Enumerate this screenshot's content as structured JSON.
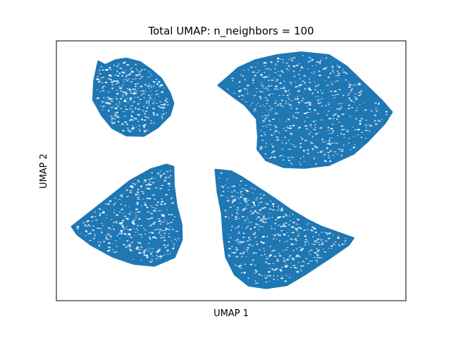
{
  "chart_data": {
    "type": "scatter",
    "title": "Total UMAP: n_neighbors = 100",
    "xlabel": "UMAP 1",
    "ylabel": "UMAP 2",
    "xticks_visible": false,
    "yticks_visible": false,
    "grid": false,
    "legend": "none",
    "xlim": [
      0,
      100
    ],
    "ylim": [
      0,
      100
    ],
    "marker_color": "#1f77b4",
    "clusters": [
      {
        "id": "top-left",
        "polygon": [
          [
            12,
            92.1
          ],
          [
            14,
            90.7
          ],
          [
            17,
            92.6
          ],
          [
            20,
            93.2
          ],
          [
            24,
            91.8
          ],
          [
            27,
            89
          ],
          [
            30,
            85.5
          ],
          [
            32.5,
            79.9
          ],
          [
            33.5,
            76
          ],
          [
            32.5,
            71.4
          ],
          [
            29,
            66.7
          ],
          [
            25,
            63.4
          ],
          [
            20,
            63.6
          ],
          [
            16,
            66.4
          ],
          [
            13,
            71.3
          ],
          [
            10.5,
            77.3
          ],
          [
            10.8,
            84.8
          ]
        ],
        "n_points": 3000
      },
      {
        "id": "top-right",
        "polygon": [
          [
            46.3,
            82.9
          ],
          [
            48.5,
            85.4
          ],
          [
            52,
            89.6
          ],
          [
            57,
            92.6
          ],
          [
            63,
            94.5
          ],
          [
            70,
            95.6
          ],
          [
            78,
            94.5
          ],
          [
            83,
            90.2
          ],
          [
            88,
            83.7
          ],
          [
            93,
            77.2
          ],
          [
            96,
            72.6
          ],
          [
            94,
            68.3
          ],
          [
            89,
            61.2
          ],
          [
            85,
            56.5
          ],
          [
            78,
            52.2
          ],
          [
            71,
            51.1
          ],
          [
            65,
            51.4
          ],
          [
            60,
            54
          ],
          [
            57.5,
            58.3
          ],
          [
            57.7,
            63
          ],
          [
            57.3,
            70
          ],
          [
            54,
            75.2
          ],
          [
            50,
            79.1
          ]
        ],
        "n_points": 5200
      },
      {
        "id": "bottom-left",
        "polygon": [
          [
            4.4,
            28.5
          ],
          [
            10,
            34.4
          ],
          [
            15.5,
            40.2
          ],
          [
            21,
            46.1
          ],
          [
            27,
            50.6
          ],
          [
            31.5,
            52.4
          ],
          [
            33.5,
            51.5
          ],
          [
            33.6,
            44.6
          ],
          [
            34.4,
            36.5
          ],
          [
            35.8,
            29.4
          ],
          [
            35.9,
            23.4
          ],
          [
            33.8,
            16.7
          ],
          [
            28,
            13.4
          ],
          [
            22,
            14.2
          ],
          [
            16,
            17
          ],
          [
            10,
            21.4
          ],
          [
            6,
            25.4
          ]
        ],
        "n_points": 3600
      },
      {
        "id": "bottom-right",
        "polygon": [
          [
            45.5,
            50.4
          ],
          [
            50,
            49.8
          ],
          [
            53,
            47.6
          ],
          [
            57,
            44.1
          ],
          [
            62,
            39.7
          ],
          [
            67,
            35
          ],
          [
            72,
            31
          ],
          [
            76,
            28.4
          ],
          [
            85,
            24.1
          ],
          [
            83.6,
            21.4
          ],
          [
            78,
            16.2
          ],
          [
            71,
            10
          ],
          [
            66,
            6
          ],
          [
            60,
            4.8
          ],
          [
            55,
            5.8
          ],
          [
            51,
            10.1
          ],
          [
            48.5,
            16.8
          ],
          [
            47.8,
            24.3
          ],
          [
            47.3,
            33.8
          ],
          [
            46.1,
            41.9
          ]
        ],
        "n_points": 4200
      }
    ]
  }
}
